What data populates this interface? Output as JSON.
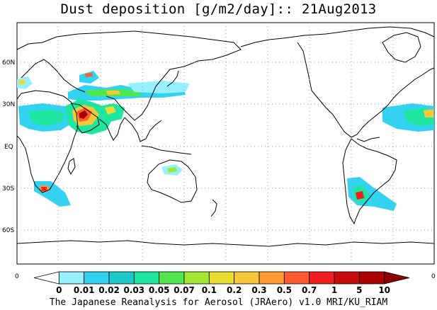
{
  "title": "Dust deposition [g/m2/day]:: 21Aug2013",
  "lat_labels": [
    "60N",
    "30N",
    "EQ",
    "30S",
    "60S"
  ],
  "colorbar": {
    "edge_left": "0",
    "edge_right": "0",
    "labels": [
      "0",
      "0.01",
      "0.02",
      "0.03",
      "0.05",
      "0.07",
      "0.1",
      "0.2",
      "0.3",
      "0.5",
      "0.7",
      "1",
      "5",
      "10"
    ],
    "colors": [
      "#ffffff",
      "#96f0ff",
      "#32d2f0",
      "#1ec8c8",
      "#1ee6a0",
      "#50e650",
      "#a0e632",
      "#e6dc32",
      "#f5c83c",
      "#ff9a32",
      "#ff5a32",
      "#f01e1e",
      "#c80a0a",
      "#aa0000",
      "#8c0000"
    ]
  },
  "credit": "The Japanese Reanalysis for Aerosol (JRAero) v1.0 MRI/KU_RIAM"
}
